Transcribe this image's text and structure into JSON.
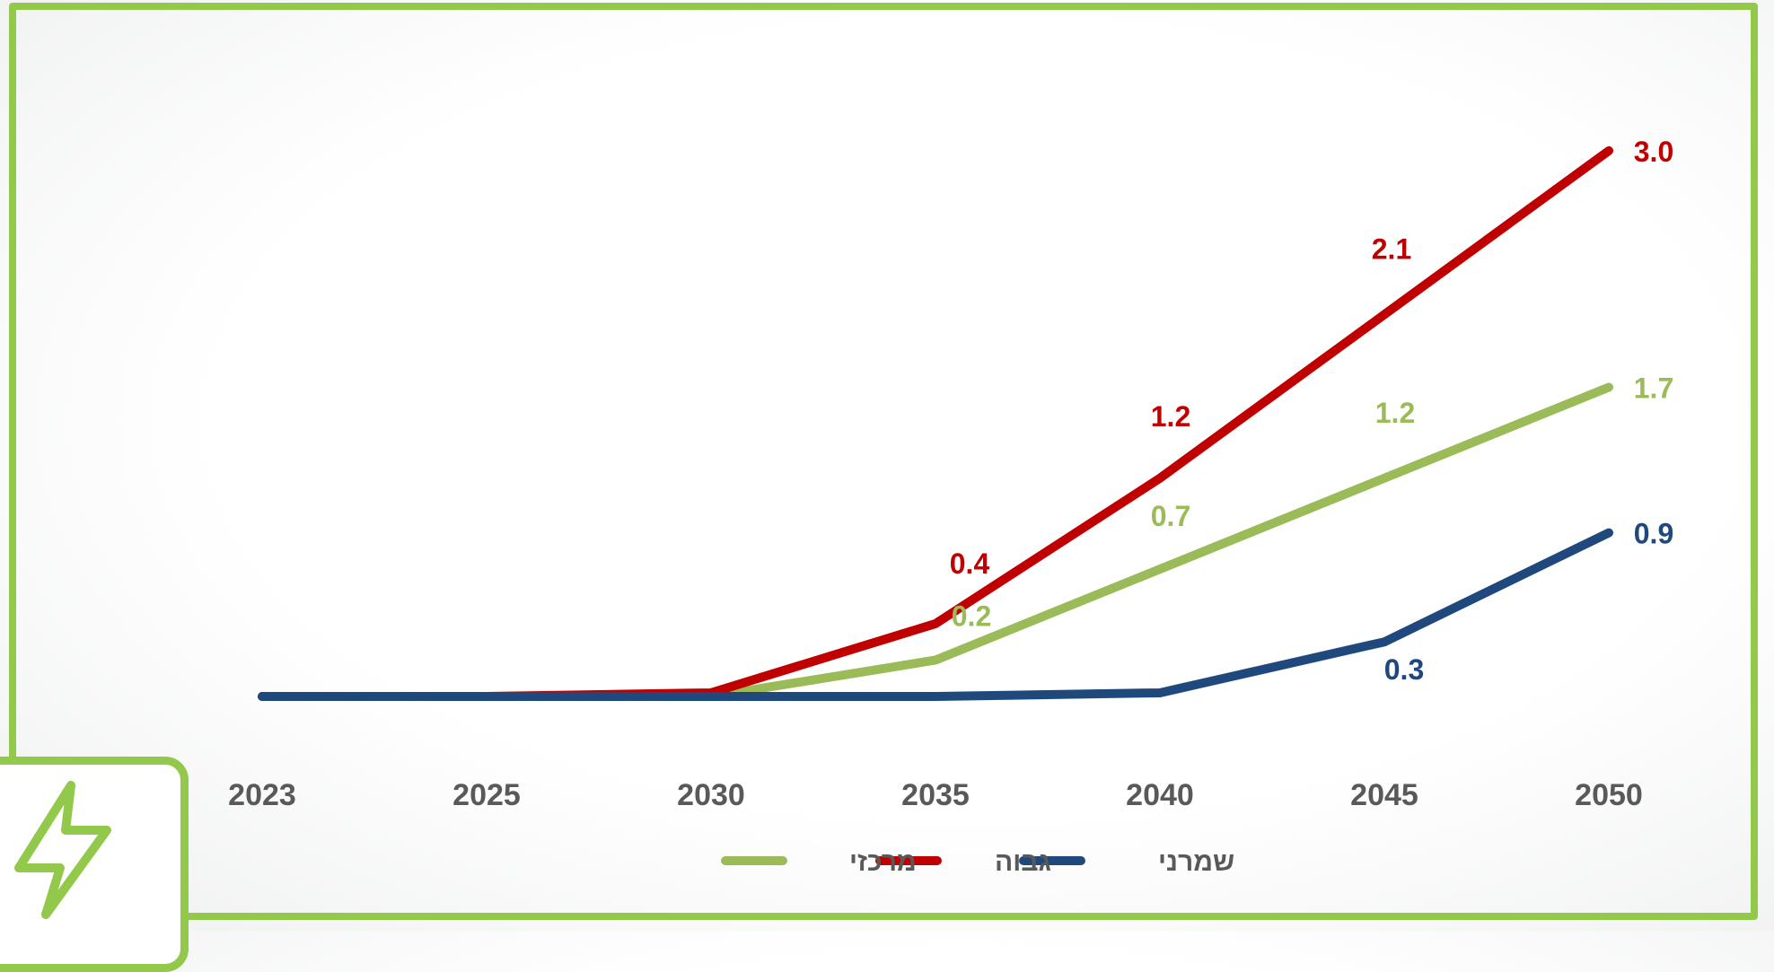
{
  "chart_data": {
    "type": "line",
    "title": "",
    "xlabel": "",
    "ylabel": "",
    "x": [
      2023,
      2025,
      2030,
      2035,
      2040,
      2045,
      2050
    ],
    "ylim": [
      0,
      3.4
    ],
    "grid": false,
    "legend_position": "bottom",
    "series": [
      {
        "name": "מרכזי",
        "color": "#9bbb59",
        "values": [
          0,
          0,
          0,
          0.2,
          0.7,
          1.2,
          1.7
        ],
        "labels": [
          "",
          "",
          "",
          "0.2",
          "0.7",
          "1.2",
          "1.7"
        ]
      },
      {
        "name": "גבוה",
        "color": "#c00000",
        "values": [
          0,
          0,
          0.02,
          0.4,
          1.2,
          2.1,
          3.0
        ],
        "labels": [
          "",
          "",
          "",
          "0.4",
          "1.2",
          "2.1",
          "3.0"
        ]
      },
      {
        "name": "שמרני",
        "color": "#1f497d",
        "values": [
          0,
          0,
          0,
          0,
          0.02,
          0.3,
          0.9
        ],
        "labels": [
          "",
          "",
          "",
          "",
          "",
          "0.3",
          "0.9"
        ]
      }
    ],
    "x_tick_labels": [
      "2023",
      "2025",
      "2030",
      "2035",
      "2040",
      "2045",
      "2050"
    ]
  },
  "decor": {
    "frame_color": "#92c94a",
    "badge_icon": "lightning-bolt-icon"
  }
}
